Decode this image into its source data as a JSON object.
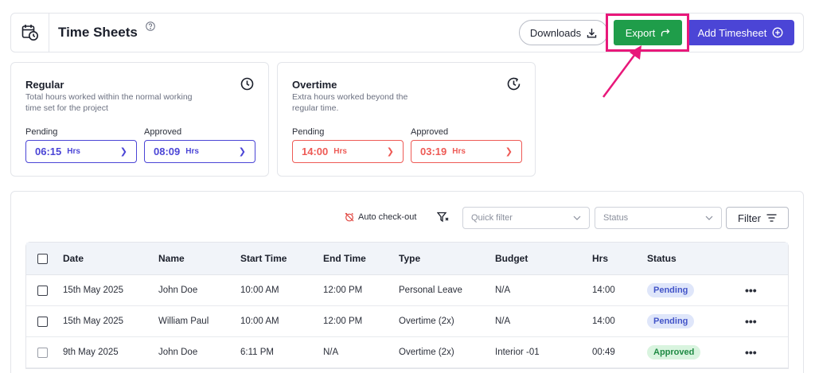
{
  "header": {
    "title": "Time Sheets",
    "downloads_label": "Downloads",
    "export_label": "Export",
    "add_label": "Add Timesheet"
  },
  "regular": {
    "title": "Regular",
    "description": "Total hours worked within the normal working time set for the project",
    "pending_label": "Pending",
    "pending_value": "06:15",
    "approved_label": "Approved",
    "approved_value": "08:09",
    "unit": "Hrs"
  },
  "overtime": {
    "title": "Overtime",
    "description": "Extra hours worked beyond the regular time.",
    "pending_label": "Pending",
    "pending_value": "14:00",
    "approved_label": "Approved",
    "approved_value": "03:19",
    "unit": "Hrs"
  },
  "toolbar": {
    "auto_checkout_label": "Auto check-out",
    "quick_filter_placeholder": "Quick filter",
    "status_placeholder": "Status",
    "filter_label": "Filter"
  },
  "table": {
    "columns": [
      "Date",
      "Name",
      "Start Time",
      "End Time",
      "Type",
      "Budget",
      "Hrs",
      "Status"
    ],
    "rows": [
      {
        "date": "15th May 2025",
        "name": "John Doe",
        "start": "10:00 AM",
        "end": "12:00 PM",
        "type": "Personal Leave",
        "budget": "N/A",
        "hrs": "14:00",
        "status": "Pending"
      },
      {
        "date": "15th May 2025",
        "name": "William Paul",
        "start": "10:00 AM",
        "end": "12:00 PM",
        "type": "Overtime (2x)",
        "budget": "N/A",
        "hrs": "14:00",
        "status": "Pending"
      },
      {
        "date": "9th May 2025",
        "name": "John Doe",
        "start": "6:11 PM",
        "end": "N/A",
        "type": "Overtime (2x)",
        "budget": "Interior -01",
        "hrs": "00:49",
        "status": "Approved"
      }
    ]
  },
  "colors": {
    "primary": "#4b45d6",
    "export_green": "#1f9d4a",
    "overtime_red": "#ee5a55",
    "highlight_pink": "#e8187a"
  }
}
